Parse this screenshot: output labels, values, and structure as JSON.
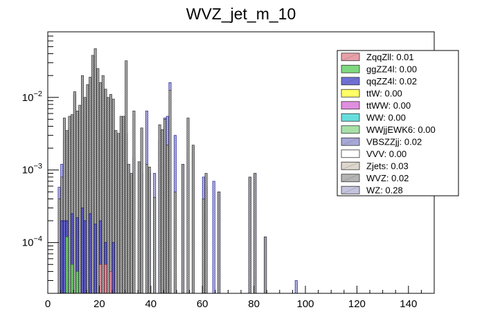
{
  "chart_data": {
    "type": "bar",
    "title": "WVZ_jet_m_10",
    "xlabel": "",
    "ylabel": "",
    "xlim": [
      0,
      150
    ],
    "ylim": [
      2e-05,
      0.08
    ],
    "yscale": "log",
    "x_ticks": [
      {
        "value": 0,
        "label": "0"
      },
      {
        "value": 20,
        "label": "20"
      },
      {
        "value": 40,
        "label": "40"
      },
      {
        "value": 60,
        "label": "60"
      },
      {
        "value": 80,
        "label": "80"
      },
      {
        "value": 100,
        "label": "100"
      },
      {
        "value": 120,
        "label": "120"
      },
      {
        "value": 140,
        "label": "140"
      }
    ],
    "y_ticks": [
      {
        "value": 0.0001,
        "label_base": "10",
        "label_exp": "−4"
      },
      {
        "value": 0.001,
        "label_base": "10",
        "label_exp": "−3"
      },
      {
        "value": 0.01,
        "label_base": "10",
        "label_exp": "−2"
      }
    ],
    "bin_width": 1,
    "legend": [
      {
        "label": "ZqqZll: 0.01",
        "color": "#e8a0a8"
      },
      {
        "label": "ggZZ4l: 0.00",
        "color": "#7ed87e"
      },
      {
        "label": "qqZZ4l: 0.02",
        "color": "#6f6fd6"
      },
      {
        "label": "ttW: 0.00",
        "color": "#ffff66"
      },
      {
        "label": "ttWW: 0.00",
        "color": "#e08ee0"
      },
      {
        "label": "WW: 0.00",
        "color": "#66dddd"
      },
      {
        "label": "WWjjEWK6: 0.00",
        "color": "#a8e0a8"
      },
      {
        "label": "VBSZZjj: 0.02",
        "color": "#a8a8d8"
      },
      {
        "label": "VVV: 0.00",
        "color": "#ffffff"
      },
      {
        "label": "Zjets: 0.03",
        "color": "#dcd6cc"
      },
      {
        "label": "WVZ: 0.02",
        "color": "#b4b4b4"
      },
      {
        "label": "WZ: 0.28",
        "color": "#c4c4de"
      }
    ],
    "series": [
      {
        "name": "WZ",
        "color": "#c4c4de",
        "edge": "#2020a0",
        "x": [
          4,
          5,
          6,
          7,
          8,
          9,
          10,
          11,
          12,
          13,
          14,
          15,
          16,
          17,
          18,
          19,
          20,
          21,
          22,
          23,
          24,
          25,
          26,
          27,
          28,
          29,
          30,
          31,
          32,
          33,
          35,
          36,
          38,
          39,
          41,
          43,
          45,
          46,
          47,
          49,
          52,
          54,
          56,
          58,
          60,
          61,
          64,
          66,
          78,
          80,
          84,
          96
        ],
        "values": [
          0.00058,
          0.0012,
          0.0026,
          0.0021,
          0.0038,
          0.0009,
          0.011,
          0.0017,
          0.0023,
          0.0045,
          0.0019,
          0.003,
          0.0042,
          0.0115,
          0.0065,
          0.0035,
          0.0085,
          0.004,
          0.003,
          0.0045,
          0.0026,
          0.0024,
          0.0009,
          0.0011,
          0.00055,
          0.0025,
          0.0032,
          0.0007,
          0.00045,
          0.0015,
          0.0002,
          0.0009,
          0.0065,
          0.0009,
          0.0009,
          0.0026,
          0.0052,
          0.0055,
          0.016,
          0.003,
          0.0012,
          0.0011,
          0.0017,
          2e-05,
          0.0008,
          0.0006,
          0.0007,
          0.0005,
          0.0008,
          0.0009,
          0.00012,
          3e-05
        ]
      },
      {
        "name": "WVZ",
        "color": "#b4b4b4",
        "edge": "#333333",
        "x": [
          4,
          5,
          6,
          7,
          8,
          9,
          10,
          11,
          12,
          13,
          14,
          15,
          16,
          17,
          18,
          19,
          20,
          21,
          22,
          23,
          24,
          25,
          26,
          27,
          28,
          29,
          30,
          31,
          32,
          33,
          35,
          36,
          38,
          39,
          41,
          43,
          44,
          45,
          46,
          47,
          49,
          52,
          54,
          56,
          60,
          61,
          66,
          78,
          80,
          84
        ],
        "values": [
          0.0004,
          0.0008,
          0.0052,
          0.0035,
          0.0055,
          0.0058,
          0.012,
          0.0065,
          0.0078,
          0.02,
          0.01,
          0.015,
          0.019,
          0.038,
          0.047,
          0.025,
          0.016,
          0.02,
          0.013,
          0.01,
          0.011,
          0.0095,
          0.0035,
          0.0032,
          0.0055,
          0.0055,
          0.032,
          0.0012,
          0.0009,
          0.0065,
          0.0013,
          0.0038,
          0.0012,
          0.0011,
          0.00042,
          0.0042,
          0.0036,
          0.005,
          0.0022,
          0.0125,
          0.0005,
          0.0012,
          0.0052,
          0.0022,
          0.0004,
          0.0009,
          0.0005,
          0.0008,
          0.0009,
          0.00012
        ]
      },
      {
        "name": "qqZZ4l",
        "color": "#6f6fd6",
        "edge": "#10106a",
        "x": [
          5,
          6,
          7,
          9,
          11,
          13,
          14,
          16,
          18,
          20,
          22,
          25
        ],
        "values": [
          0.0002,
          0.0002,
          0.0002,
          0.00025,
          0.00022,
          0.0003,
          0.0002,
          0.00025,
          0.00018,
          0.0002,
          0.0001,
          0.0001
        ]
      },
      {
        "name": "ZqqZll",
        "color": "#e8a0a8",
        "edge": "#8a2030",
        "x": [
          20,
          22,
          24
        ],
        "values": [
          5e-05,
          5e-05,
          4e-05
        ]
      },
      {
        "name": "ggZZ4l",
        "color": "#7ed87e",
        "edge": "#207020",
        "x": [
          7,
          9,
          11
        ],
        "values": [
          0.00012,
          5e-05,
          4e-05
        ]
      }
    ]
  }
}
